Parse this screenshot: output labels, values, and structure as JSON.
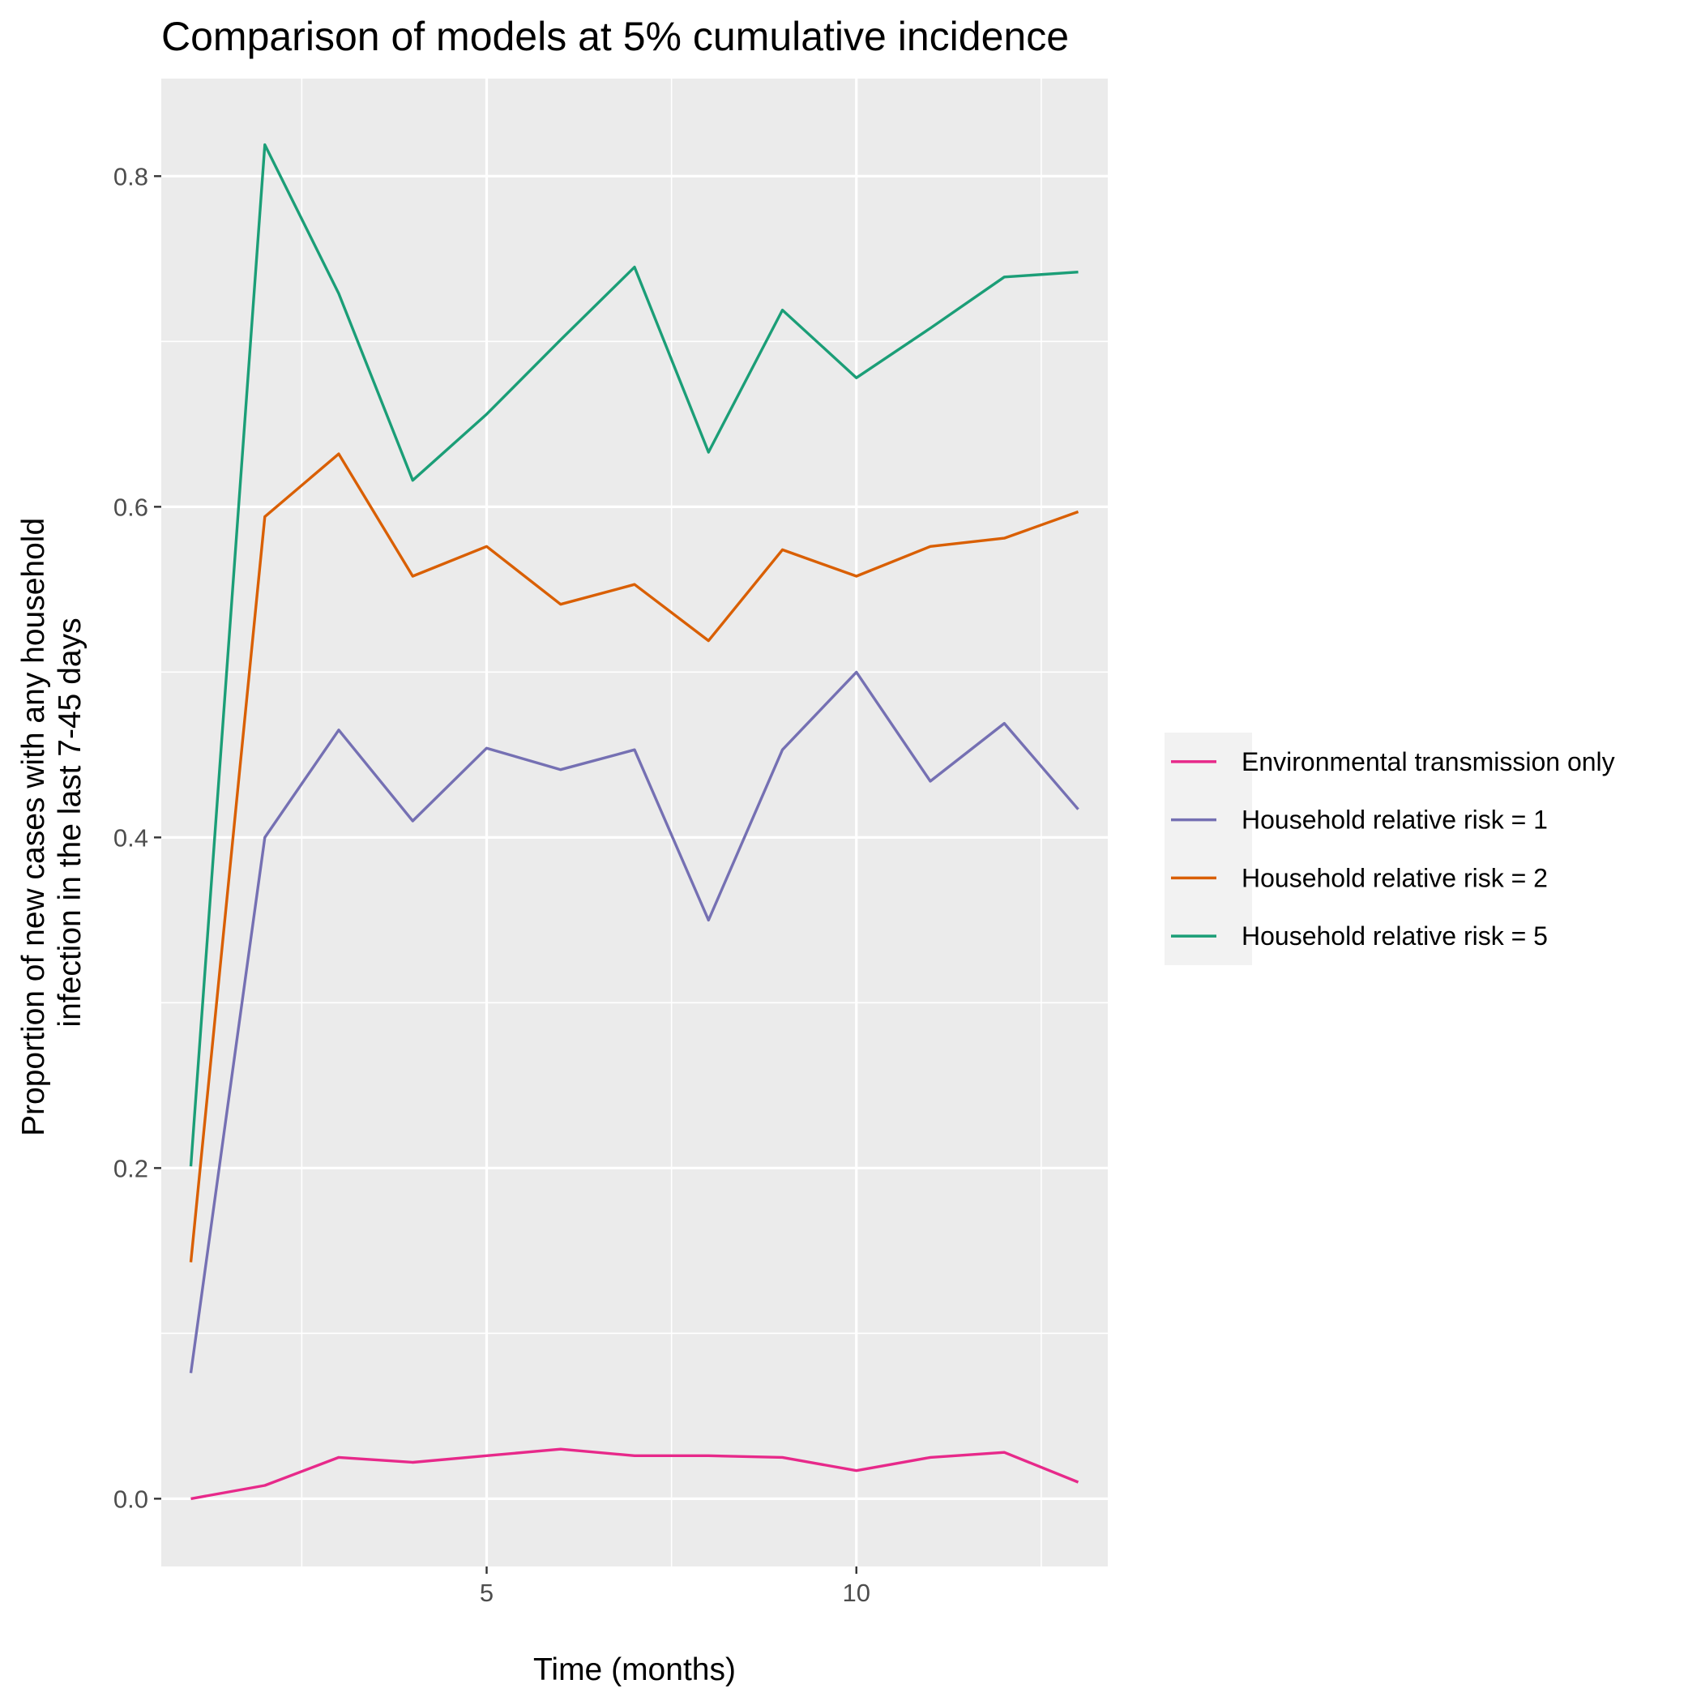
{
  "chart_data": {
    "type": "line",
    "title": "Comparison of models at 5% cumulative incidence",
    "xlabel": "Time (months)",
    "ylabel_lines": [
      "Proportion of new cases with any household",
      "infection in the last 7-45 days"
    ],
    "xlim": [
      0.6,
      13.4
    ],
    "ylim": [
      -0.041,
      0.859
    ],
    "x_ticks": [
      5,
      10
    ],
    "y_ticks": [
      0.0,
      0.2,
      0.4,
      0.6,
      0.8
    ],
    "y_tick_labels": [
      "0.0",
      "0.2",
      "0.4",
      "0.6",
      "0.8"
    ],
    "grid": true,
    "legend_position": "right",
    "x": [
      1,
      2,
      3,
      4,
      5,
      6,
      7,
      8,
      9,
      10,
      11,
      12,
      13
    ],
    "series": [
      {
        "name": "Environmental transmission only",
        "color": "#e7298a",
        "values": [
          0.0,
          0.008,
          0.025,
          0.022,
          0.026,
          0.03,
          0.026,
          0.026,
          0.025,
          0.017,
          0.025,
          0.028,
          0.01
        ]
      },
      {
        "name": "Household relative risk = 1",
        "color": "#7570b3",
        "values": [
          0.076,
          0.4,
          0.465,
          0.41,
          0.454,
          0.441,
          0.453,
          0.35,
          0.453,
          0.5,
          0.434,
          0.469,
          0.417
        ]
      },
      {
        "name": "Household relative risk = 2",
        "color": "#d95f02",
        "values": [
          0.143,
          0.594,
          0.632,
          0.558,
          0.576,
          0.541,
          0.553,
          0.519,
          0.574,
          0.558,
          0.576,
          0.581,
          0.597
        ]
      },
      {
        "name": "Household relative risk = 5",
        "color": "#1b9e77",
        "values": [
          0.201,
          0.819,
          0.729,
          0.616,
          0.656,
          0.701,
          0.745,
          0.633,
          0.719,
          0.678,
          0.708,
          0.739,
          0.742
        ]
      }
    ]
  }
}
